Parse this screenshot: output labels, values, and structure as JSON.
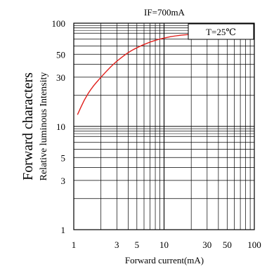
{
  "chart_data": {
    "type": "line",
    "title": "IF=700mA",
    "annotation": "T=25℃",
    "ylabel_main": "Forward characters",
    "ylabel_sub": "Relative luminous Intensity",
    "xlabel": "Forward current(mA)",
    "x_scale": "log",
    "y_scale": "log",
    "xlim": [
      1,
      100
    ],
    "ylim": [
      1,
      100
    ],
    "x_ticks": [
      {
        "value": 1,
        "label": "1"
      },
      {
        "value": 3,
        "label": "3"
      },
      {
        "value": 5,
        "label": "5"
      },
      {
        "value": 10,
        "label": "10"
      },
      {
        "value": 30,
        "label": "30"
      },
      {
        "value": 50,
        "label": "50"
      },
      {
        "value": 100,
        "label": "100"
      }
    ],
    "y_ticks": [
      {
        "value": 1,
        "label": "1"
      },
      {
        "value": 3,
        "label": "3"
      },
      {
        "value": 5,
        "label": "5"
      },
      {
        "value": 10,
        "label": "10"
      },
      {
        "value": 30,
        "label": "30"
      },
      {
        "value": 50,
        "label": "50"
      },
      {
        "value": 100,
        "label": "100"
      }
    ],
    "grid": true,
    "series": [
      {
        "color": "#e0201c",
        "x": [
          1.1,
          1.3,
          1.6,
          2,
          2.5,
          3,
          4,
          5,
          7,
          10,
          14,
          20
        ],
        "y": [
          13,
          18,
          24,
          30,
          37,
          43,
          52,
          58,
          66,
          72,
          76,
          78
        ]
      }
    ]
  }
}
